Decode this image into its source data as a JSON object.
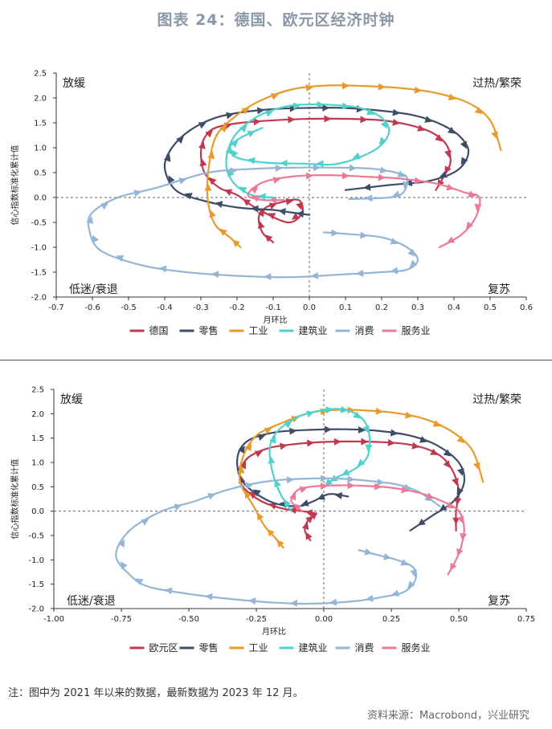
{
  "title": "图表 24：德国、欧元区经济时钟",
  "note": "注：图中为 2021 年以来的数据，最新数据为 2023 年 12 月。",
  "source": "资料来源：Macrobond，兴业研究",
  "chart_data": [
    {
      "type": "line",
      "xlabel": "月环比",
      "ylabel": "信心指数标准化累计值",
      "xlim": [
        -0.7,
        0.6
      ],
      "ylim": [
        -2.0,
        2.5
      ],
      "xticks": [
        "-0.7",
        "-0.6",
        "-0.5",
        "-0.4",
        "-0.3",
        "-0.2",
        "-0.1",
        "0.0",
        "0.1",
        "0.2",
        "0.3",
        "0.4",
        "0.5",
        "0.6"
      ],
      "xtick_values": [
        -0.7,
        -0.6,
        -0.5,
        -0.4,
        -0.3,
        -0.2,
        -0.1,
        0.0,
        0.1,
        0.2,
        0.3,
        0.4,
        0.5,
        0.6
      ],
      "yticks": [
        "2.5",
        "2.0",
        "1.5",
        "1.0",
        "0.5",
        "0.0",
        "-0.5",
        "-1.0",
        "-1.5",
        "-2.0"
      ],
      "ytick_values": [
        2.5,
        2.0,
        1.5,
        1.0,
        0.5,
        0.0,
        -0.5,
        -1.0,
        -1.5,
        -2.0
      ],
      "quadrants": {
        "top_left": "放缓",
        "top_right": "过热/繁荣",
        "bottom_left": "低迷/衰退",
        "bottom_right": "复苏"
      },
      "series": [
        {
          "name": "德国",
          "color": "#c0394f",
          "x": [
            -0.1,
            -0.13,
            -0.14,
            -0.12,
            -0.08,
            -0.03,
            -0.02,
            -0.06,
            -0.15,
            -0.2,
            -0.25,
            -0.29,
            -0.3,
            -0.29,
            -0.26,
            -0.19,
            -0.1,
            0.0,
            0.1,
            0.2,
            0.28,
            0.34,
            0.38,
            0.39,
            0.37,
            0.35
          ],
          "y": [
            -0.9,
            -0.7,
            -0.4,
            -0.2,
            -0.1,
            -0.05,
            -0.3,
            -0.5,
            -0.2,
            0.05,
            0.2,
            0.5,
            0.9,
            1.2,
            1.4,
            1.5,
            1.55,
            1.58,
            1.58,
            1.55,
            1.45,
            1.3,
            1.05,
            0.7,
            0.4,
            0.15
          ]
        },
        {
          "name": "零售",
          "color": "#3d4d66",
          "x": [
            0.0,
            -0.05,
            -0.1,
            -0.2,
            -0.3,
            -0.37,
            -0.4,
            -0.38,
            -0.33,
            -0.26,
            -0.18,
            -0.09,
            0.0,
            0.09,
            0.19,
            0.29,
            0.37,
            0.42,
            0.44,
            0.41,
            0.33,
            0.22,
            0.1
          ],
          "y": [
            -0.35,
            -0.3,
            -0.25,
            -0.2,
            -0.05,
            0.15,
            0.6,
            1.0,
            1.35,
            1.6,
            1.72,
            1.78,
            1.8,
            1.8,
            1.75,
            1.65,
            1.45,
            1.2,
            0.9,
            0.55,
            0.33,
            0.25,
            0.15
          ]
        },
        {
          "name": "工业",
          "color": "#e89a2c",
          "x": [
            -0.19,
            -0.22,
            -0.26,
            -0.28,
            -0.28,
            -0.26,
            -0.21,
            -0.14,
            -0.05,
            0.05,
            0.15,
            0.25,
            0.35,
            0.44,
            0.5,
            0.53
          ],
          "y": [
            -1.0,
            -0.8,
            -0.55,
            -0.1,
            0.5,
            1.2,
            1.6,
            1.93,
            2.17,
            2.25,
            2.24,
            2.2,
            2.1,
            1.9,
            1.55,
            0.95
          ]
        },
        {
          "name": "建筑业",
          "color": "#4fd1cc",
          "x": [
            -0.1,
            -0.16,
            -0.21,
            -0.23,
            -0.21,
            -0.15,
            -0.07,
            0.0,
            0.06,
            0.14,
            0.2,
            0.22,
            0.18,
            0.08,
            -0.02,
            -0.12,
            -0.2,
            -0.22,
            -0.19,
            -0.13
          ],
          "y": [
            0.0,
            0.05,
            0.3,
            0.7,
            1.2,
            1.6,
            1.82,
            1.87,
            1.86,
            1.8,
            1.6,
            1.3,
            0.95,
            0.68,
            0.68,
            0.7,
            0.8,
            1.0,
            1.2,
            1.4
          ]
        },
        {
          "name": "消费",
          "color": "#93b5d6",
          "x": [
            0.04,
            0.1,
            0.2,
            0.27,
            0.3,
            0.27,
            0.2,
            0.08,
            -0.05,
            -0.18,
            -0.34,
            -0.47,
            -0.58,
            -0.61,
            -0.6,
            -0.53,
            -0.42,
            -0.28,
            -0.14,
            -0.03,
            0.07,
            0.17,
            0.24,
            0.27,
            0.26,
            0.22,
            0.11
          ],
          "y": [
            -0.7,
            -0.73,
            -0.8,
            -1.0,
            -1.25,
            -1.45,
            -1.5,
            -1.55,
            -1.6,
            -1.58,
            -1.5,
            -1.35,
            -1.05,
            -0.6,
            -0.3,
            0.0,
            0.2,
            0.5,
            0.58,
            0.6,
            0.6,
            0.58,
            0.5,
            0.4,
            0.1,
            0.0,
            -0.03
          ]
        },
        {
          "name": "服务业",
          "color": "#ec7a96",
          "x": [
            -0.07,
            -0.13,
            -0.17,
            -0.13,
            -0.05,
            0.05,
            0.15,
            0.25,
            0.35,
            0.43,
            0.47,
            0.46,
            0.42,
            0.36
          ],
          "y": [
            -0.05,
            -0.05,
            0.05,
            0.3,
            0.42,
            0.45,
            0.42,
            0.38,
            0.28,
            0.1,
            0.0,
            -0.4,
            -0.75,
            -1.0
          ]
        }
      ]
    },
    {
      "type": "line",
      "xlabel": "月环比",
      "ylabel": "信心指数标准化累计值",
      "xlim": [
        -1.0,
        0.75
      ],
      "ylim": [
        -2.0,
        2.5
      ],
      "xticks": [
        "-1.00",
        "-0.75",
        "-0.50",
        "-0.25",
        "0.00",
        "0.25",
        "0.50",
        "0.75"
      ],
      "xtick_values": [
        -1.0,
        -0.75,
        -0.5,
        -0.25,
        0.0,
        0.25,
        0.5,
        0.75
      ],
      "yticks": [
        "2.5",
        "2.0",
        "1.5",
        "1.0",
        "0.5",
        "0.0",
        "-0.5",
        "-1.0",
        "-1.5",
        "-2.0"
      ],
      "ytick_values": [
        2.5,
        2.0,
        1.5,
        1.0,
        0.5,
        0.0,
        -0.5,
        -1.0,
        -1.5,
        -2.0
      ],
      "quadrants": {
        "top_left": "放缓",
        "top_right": "过热/繁荣",
        "bottom_left": "低迷/衰退",
        "bottom_right": "复苏"
      },
      "series": [
        {
          "name": "欧元区",
          "color": "#c0394f",
          "x": [
            -0.05,
            -0.07,
            -0.06,
            -0.04,
            -0.03,
            -0.08,
            -0.15,
            -0.23,
            -0.3,
            -0.31,
            -0.28,
            -0.2,
            -0.1,
            0.0,
            0.1,
            0.2,
            0.3,
            0.38,
            0.44,
            0.48,
            0.5,
            0.49,
            0.49
          ],
          "y": [
            -0.6,
            -0.4,
            -0.2,
            -0.1,
            -0.05,
            0.0,
            0.05,
            0.2,
            0.5,
            0.8,
            1.1,
            1.3,
            1.38,
            1.42,
            1.43,
            1.42,
            1.38,
            1.28,
            1.1,
            0.8,
            0.4,
            0.0,
            -0.4
          ]
        },
        {
          "name": "零售",
          "color": "#3d4d66",
          "x": [
            0.09,
            0.02,
            -0.04,
            -0.1,
            -0.2,
            -0.3,
            -0.32,
            -0.28,
            -0.18,
            -0.05,
            0.08,
            0.2,
            0.32,
            0.42,
            0.5,
            0.52,
            0.48,
            0.4,
            0.32
          ],
          "y": [
            0.3,
            0.35,
            0.2,
            0.1,
            0.2,
            0.6,
            1.1,
            1.45,
            1.62,
            1.67,
            1.68,
            1.65,
            1.55,
            1.35,
            1.0,
            0.6,
            0.2,
            -0.1,
            -0.4
          ]
        },
        {
          "name": "工业",
          "color": "#e89a2c",
          "x": [
            -0.15,
            -0.18,
            -0.22,
            -0.26,
            -0.31,
            -0.3,
            -0.25,
            -0.16,
            -0.05,
            0.05,
            0.15,
            0.26,
            0.37,
            0.47,
            0.55,
            0.59
          ],
          "y": [
            -0.75,
            -0.55,
            -0.3,
            0.1,
            0.6,
            1.1,
            1.55,
            1.8,
            2.02,
            2.08,
            2.07,
            2.02,
            1.9,
            1.65,
            1.25,
            0.6
          ]
        },
        {
          "name": "建筑业",
          "color": "#4fd1cc",
          "x": [
            -0.12,
            -0.16,
            -0.19,
            -0.2,
            -0.17,
            -0.09,
            -0.01,
            0.05,
            0.1,
            0.15,
            0.17,
            0.16,
            0.11,
            0.05,
            0.02,
            0.01
          ],
          "y": [
            0.0,
            0.35,
            0.8,
            1.3,
            1.65,
            1.95,
            2.07,
            2.1,
            2.05,
            1.85,
            1.5,
            1.1,
            0.85,
            0.7,
            0.6,
            0.55
          ]
        },
        {
          "name": "消费",
          "color": "#93b5d6",
          "x": [
            0.13,
            0.2,
            0.27,
            0.33,
            0.34,
            0.3,
            0.23,
            0.11,
            -0.04,
            -0.18,
            -0.35,
            -0.5,
            -0.65,
            -0.72,
            -0.77,
            -0.72,
            -0.6,
            -0.48,
            -0.35,
            -0.2,
            -0.05,
            0.05,
            0.15,
            0.27,
            0.35,
            0.43
          ],
          "y": [
            -0.8,
            -0.9,
            -1.0,
            -1.15,
            -1.4,
            -1.65,
            -1.75,
            -1.85,
            -1.9,
            -1.88,
            -1.8,
            -1.7,
            -1.55,
            -1.3,
            -0.9,
            -0.4,
            0.0,
            0.2,
            0.45,
            0.62,
            0.67,
            0.67,
            0.63,
            0.55,
            0.4,
            0.1
          ]
        },
        {
          "name": "服务业",
          "color": "#ec7a96",
          "x": [
            -0.08,
            -0.12,
            -0.1,
            -0.05,
            0.05,
            0.15,
            0.25,
            0.35,
            0.44,
            0.5,
            0.52,
            0.51,
            0.49,
            0.46
          ],
          "y": [
            0.0,
            0.2,
            0.42,
            0.5,
            0.53,
            0.52,
            0.48,
            0.38,
            0.2,
            0.0,
            -0.35,
            -0.7,
            -1.0,
            -1.3
          ]
        }
      ]
    }
  ]
}
